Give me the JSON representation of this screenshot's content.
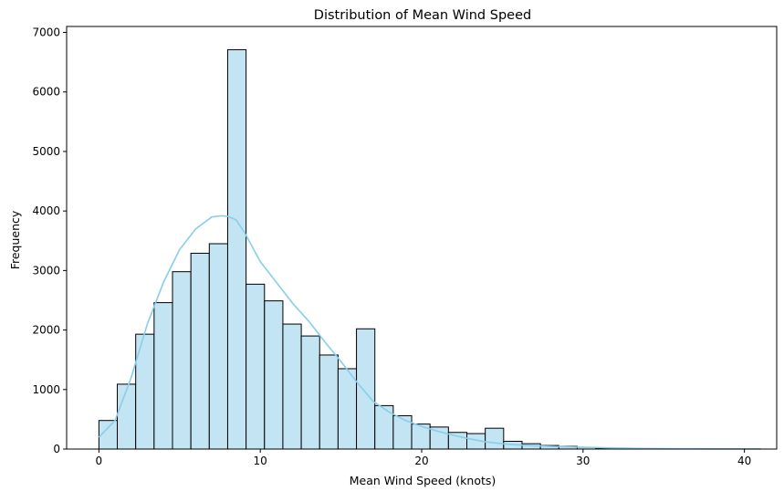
{
  "chart_data": {
    "type": "bar",
    "subtype": "histogram-with-kde",
    "title": "Distribution of Mean Wind Speed",
    "xlabel": "Mean Wind Speed (knots)",
    "ylabel": "Frequency",
    "xlim": [
      -2,
      42
    ],
    "ylim": [
      0,
      7100
    ],
    "xticks": [
      0,
      10,
      20,
      30,
      40
    ],
    "yticks": [
      0,
      1000,
      2000,
      3000,
      4000,
      5000,
      6000,
      7000
    ],
    "grid": false,
    "legend": "none",
    "bin_start": 0,
    "bin_width": 1.14,
    "bins": [
      {
        "x_start": 0.0,
        "x_end": 1.14,
        "value": 480
      },
      {
        "x_start": 1.14,
        "x_end": 2.28,
        "value": 1090
      },
      {
        "x_start": 2.28,
        "x_end": 3.42,
        "value": 1930
      },
      {
        "x_start": 3.42,
        "x_end": 4.56,
        "value": 2460
      },
      {
        "x_start": 4.56,
        "x_end": 5.7,
        "value": 2980
      },
      {
        "x_start": 5.7,
        "x_end": 6.84,
        "value": 3290
      },
      {
        "x_start": 6.84,
        "x_end": 7.98,
        "value": 3450
      },
      {
        "x_start": 7.98,
        "x_end": 9.12,
        "value": 6710
      },
      {
        "x_start": 9.12,
        "x_end": 10.26,
        "value": 2770
      },
      {
        "x_start": 10.26,
        "x_end": 11.4,
        "value": 2490
      },
      {
        "x_start": 11.4,
        "x_end": 12.54,
        "value": 2100
      },
      {
        "x_start": 12.54,
        "x_end": 13.68,
        "value": 1900
      },
      {
        "x_start": 13.68,
        "x_end": 14.82,
        "value": 1580
      },
      {
        "x_start": 14.82,
        "x_end": 15.96,
        "value": 1350
      },
      {
        "x_start": 15.96,
        "x_end": 17.1,
        "value": 2020
      },
      {
        "x_start": 17.1,
        "x_end": 18.24,
        "value": 730
      },
      {
        "x_start": 18.24,
        "x_end": 19.38,
        "value": 560
      },
      {
        "x_start": 19.38,
        "x_end": 20.52,
        "value": 420
      },
      {
        "x_start": 20.52,
        "x_end": 21.66,
        "value": 370
      },
      {
        "x_start": 21.66,
        "x_end": 22.8,
        "value": 280
      },
      {
        "x_start": 22.8,
        "x_end": 23.94,
        "value": 260
      },
      {
        "x_start": 23.94,
        "x_end": 25.08,
        "value": 350
      },
      {
        "x_start": 25.08,
        "x_end": 26.22,
        "value": 130
      },
      {
        "x_start": 26.22,
        "x_end": 27.36,
        "value": 90
      },
      {
        "x_start": 27.36,
        "x_end": 28.5,
        "value": 60
      },
      {
        "x_start": 28.5,
        "x_end": 29.64,
        "value": 45
      },
      {
        "x_start": 29.64,
        "x_end": 30.78,
        "value": 30
      },
      {
        "x_start": 30.78,
        "x_end": 31.92,
        "value": 15
      },
      {
        "x_start": 31.92,
        "x_end": 33.06,
        "value": 8
      },
      {
        "x_start": 33.06,
        "x_end": 34.2,
        "value": 5
      },
      {
        "x_start": 34.2,
        "x_end": 35.34,
        "value": 4
      },
      {
        "x_start": 35.34,
        "x_end": 36.48,
        "value": 3
      },
      {
        "x_start": 36.48,
        "x_end": 37.62,
        "value": 2
      },
      {
        "x_start": 37.62,
        "x_end": 38.76,
        "value": 2
      },
      {
        "x_start": 38.76,
        "x_end": 39.9,
        "value": 1
      },
      {
        "x_start": 39.9,
        "x_end": 41.04,
        "value": 1
      }
    ],
    "kde": {
      "x": [
        0,
        1,
        2,
        3,
        4,
        5,
        6,
        7,
        7.6,
        8,
        8.5,
        9,
        10,
        11,
        12,
        13,
        14,
        15,
        16,
        17,
        18,
        19,
        20,
        21,
        22,
        23,
        24,
        25,
        26,
        27,
        28,
        29,
        30,
        31,
        32,
        33,
        34,
        36,
        38,
        40,
        41
      ],
      "y": [
        200,
        480,
        1200,
        2100,
        2800,
        3350,
        3700,
        3900,
        3920,
        3910,
        3850,
        3650,
        3150,
        2800,
        2450,
        2150,
        1800,
        1470,
        1120,
        800,
        620,
        480,
        380,
        300,
        230,
        170,
        120,
        90,
        70,
        55,
        45,
        35,
        30,
        25,
        18,
        12,
        8,
        5,
        3,
        2,
        1
      ]
    },
    "colors": {
      "bar_fill": "#c3e4f2",
      "bar_edge": "#000000",
      "kde_line": "#87ceeb",
      "axes": "#000000"
    }
  }
}
